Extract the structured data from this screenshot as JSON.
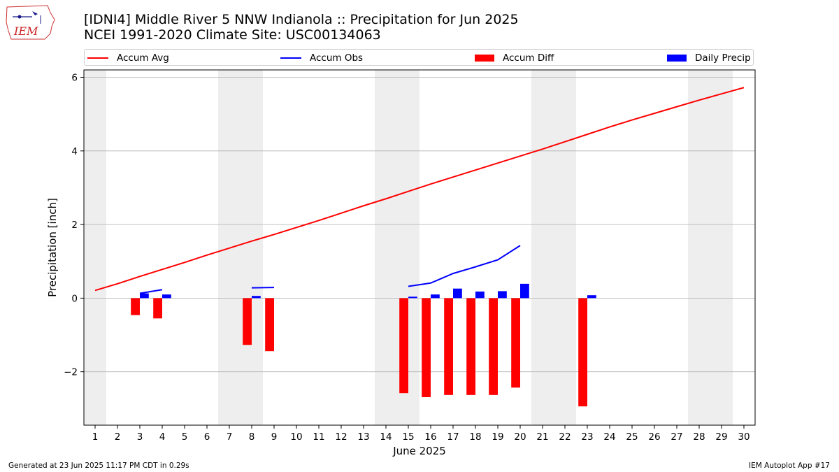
{
  "header": {
    "logo_text": "IEM",
    "title_line1": "[IDNI4] Middle River 5 NNW Indianola :: Precipitation for Jun 2025",
    "title_line2": "NCEI 1991-2020 Climate Site: USC00134063"
  },
  "legend": {
    "placement": "top, above plot",
    "items": [
      {
        "label": "Accum Avg",
        "color": "#ff0000",
        "kind": "line"
      },
      {
        "label": "Accum Obs",
        "color": "#0000ff",
        "kind": "line"
      },
      {
        "label": "Accum Diff",
        "color": "#ff0000",
        "kind": "bar"
      },
      {
        "label": "Daily Precip",
        "color": "#0000ff",
        "kind": "bar"
      }
    ]
  },
  "footer": {
    "left": "Generated at 23 Jun 2025 11:17 PM CDT in 0.29s",
    "right": "IEM Autoplot App #17"
  },
  "chart_data": {
    "type": "bar",
    "xlabel": "June 2025",
    "ylabel": "Precipitation [inch]",
    "xlim": [
      0.5,
      30.5
    ],
    "ylim": [
      -3.45,
      6.2
    ],
    "yticks": [
      6,
      4,
      2,
      0,
      -2
    ],
    "ytick_labels": [
      "6",
      "4",
      "2",
      "0",
      "−2"
    ],
    "grid": "horizontal",
    "weekend_shading": [
      [
        0.5,
        1.5
      ],
      [
        6.5,
        8.5
      ],
      [
        13.5,
        15.5
      ],
      [
        20.5,
        22.5
      ],
      [
        27.5,
        29.5
      ]
    ],
    "days": [
      1,
      2,
      3,
      4,
      5,
      6,
      7,
      8,
      9,
      10,
      11,
      12,
      13,
      14,
      15,
      16,
      17,
      18,
      19,
      20,
      21,
      22,
      23,
      24,
      25,
      26,
      27,
      28,
      29,
      30
    ],
    "accum_avg": [
      0.21,
      0.39,
      0.59,
      0.78,
      0.97,
      1.17,
      1.36,
      1.55,
      1.73,
      1.92,
      2.11,
      2.31,
      2.51,
      2.7,
      2.9,
      3.1,
      3.29,
      3.48,
      3.67,
      3.86,
      4.05,
      4.25,
      4.45,
      4.65,
      4.84,
      5.02,
      5.2,
      5.38,
      5.55,
      5.72
    ],
    "accum_obs": [
      {
        "x": 3,
        "y": 0.13
      },
      {
        "x": 4,
        "y": 0.23
      },
      {
        "x": 8,
        "y": 0.28
      },
      {
        "x": 9,
        "y": 0.29
      },
      {
        "x": 15,
        "y": 0.32
      },
      {
        "x": 16,
        "y": 0.41
      },
      {
        "x": 17,
        "y": 0.67
      },
      {
        "x": 18,
        "y": 0.85
      },
      {
        "x": 19,
        "y": 1.04
      },
      {
        "x": 20,
        "y": 1.43
      }
    ],
    "accum_obs_segments": [
      [
        0,
        1
      ],
      [
        2,
        3
      ],
      [
        4,
        9
      ]
    ],
    "accum_diff": [
      {
        "x": 3,
        "y": -0.46
      },
      {
        "x": 4,
        "y": -0.55
      },
      {
        "x": 8,
        "y": -1.27
      },
      {
        "x": 9,
        "y": -1.44
      },
      {
        "x": 15,
        "y": -2.58
      },
      {
        "x": 16,
        "y": -2.69
      },
      {
        "x": 17,
        "y": -2.63
      },
      {
        "x": 18,
        "y": -2.63
      },
      {
        "x": 19,
        "y": -2.63
      },
      {
        "x": 20,
        "y": -2.43
      },
      {
        "x": 23,
        "y": -2.94
      }
    ],
    "daily_precip": [
      {
        "x": 3,
        "y": 0.13
      },
      {
        "x": 4,
        "y": 0.1
      },
      {
        "x": 8,
        "y": 0.06
      },
      {
        "x": 9,
        "y": 0.0
      },
      {
        "x": 15,
        "y": 0.04
      },
      {
        "x": 16,
        "y": 0.1
      },
      {
        "x": 17,
        "y": 0.26
      },
      {
        "x": 18,
        "y": 0.18
      },
      {
        "x": 19,
        "y": 0.19
      },
      {
        "x": 20,
        "y": 0.39
      },
      {
        "x": 23,
        "y": 0.08
      }
    ],
    "colors": {
      "avg": "#ff0000",
      "obs": "#0000ff",
      "diff": "#ff0000",
      "precip": "#0000ff",
      "shade": "#eeeeee",
      "grid": "#b0b0b0"
    }
  }
}
